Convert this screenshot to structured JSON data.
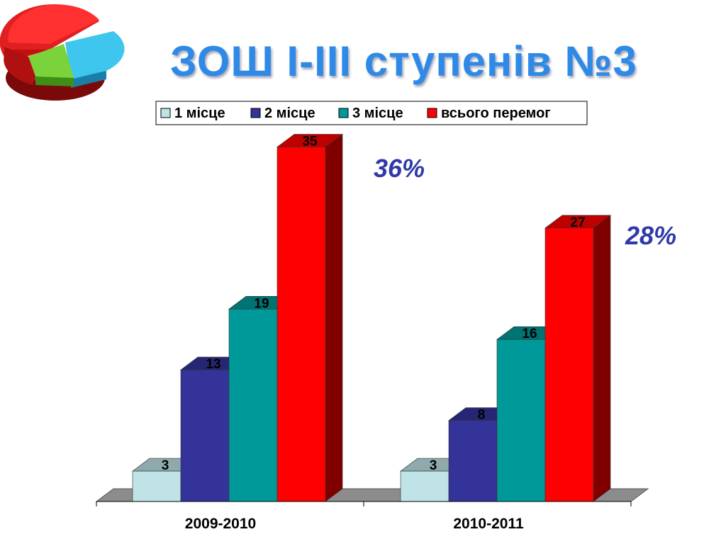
{
  "title": "ЗОШ І-ІІІ ступенів №3",
  "colors": {
    "title": "#2e8ae6",
    "percent_text": "#2f3aa8"
  },
  "logo": {
    "icon": "pie-chart-icon"
  },
  "chart_data": {
    "type": "bar",
    "categories": [
      "2009-2010",
      "2010-2011"
    ],
    "series": [
      {
        "name": "1 місце",
        "values": [
          3,
          3
        ],
        "color": "#bfe3e6"
      },
      {
        "name": "2 місце",
        "values": [
          13,
          8
        ],
        "color": "#33339a"
      },
      {
        "name": "3 місце",
        "values": [
          19,
          16
        ],
        "color": "#009999"
      },
      {
        "name": "всього перемог",
        "values": [
          35,
          27
        ],
        "color": "#ff0000"
      }
    ],
    "annotations": [
      "36%",
      "28%"
    ],
    "legend_position": "top",
    "grid": false,
    "ylim": [
      0,
      35
    ]
  }
}
